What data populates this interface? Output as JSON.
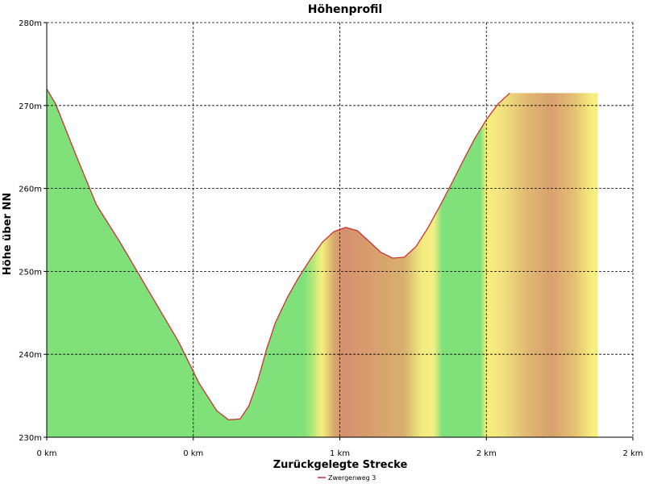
{
  "chart_data": {
    "type": "area",
    "title": "Höhenprofil",
    "xlabel": "Zurückgelegte Strecke",
    "ylabel": "Höhe über NN",
    "x_ticks": [
      "0 km",
      "0 km",
      "1 km",
      "2 km",
      "2 km"
    ],
    "x_tick_values": [
      0,
      0.5,
      1.0,
      1.5,
      2.0
    ],
    "y_ticks": [
      "230m",
      "240m",
      "250m",
      "260m",
      "270m",
      "280m"
    ],
    "y_tick_values": [
      230,
      240,
      250,
      260,
      270,
      280
    ],
    "xlim": [
      0,
      2.0
    ],
    "ylim": [
      230,
      280
    ],
    "grid": true,
    "legend_position": "bottom-center",
    "series": [
      {
        "name": "Zwergenweg 3",
        "color": "#cc3333",
        "x": [
          0,
          0.03,
          0.1,
          0.17,
          0.25,
          0.35,
          0.45,
          0.52,
          0.58,
          0.62,
          0.66,
          0.69,
          0.72,
          0.75,
          0.78,
          0.82,
          0.86,
          0.9,
          0.94,
          0.98,
          1.02,
          1.06,
          1.1,
          1.14,
          1.18,
          1.22,
          1.26,
          1.3,
          1.34,
          1.38,
          1.42,
          1.46,
          1.5,
          1.54,
          1.58,
          1.62,
          1.66,
          1.7,
          1.74,
          1.78,
          1.82,
          1.86,
          1.88
        ],
        "values": [
          272,
          270.2,
          264,
          258,
          253.5,
          247.5,
          241.5,
          236.5,
          233.2,
          232.1,
          232.2,
          233.8,
          236.8,
          240.6,
          243.8,
          246.8,
          249.3,
          251.5,
          253.5,
          254.8,
          255.3,
          254.9,
          253.6,
          252.3,
          251.6,
          251.7,
          253.0,
          255.2,
          257.8,
          260.5,
          263.3,
          266.0,
          268.3,
          270.2,
          271.5,
          271.5,
          271.5,
          271.5,
          271.5,
          271.5,
          271.5,
          271.5,
          271.5
        ]
      }
    ],
    "fill_bands": [
      {
        "from": 0.0,
        "color": "#80e07a"
      },
      {
        "from": 0.88,
        "color": "#80e07a"
      },
      {
        "from": 0.94,
        "color": "#f6f07c"
      },
      {
        "from": 0.98,
        "color": "#d8aa6e"
      },
      {
        "from": 1.01,
        "color": "#d59070"
      },
      {
        "from": 1.12,
        "color": "#d8a06e"
      },
      {
        "from": 1.22,
        "color": "#d8b070"
      },
      {
        "from": 1.28,
        "color": "#f2ec80"
      },
      {
        "from": 1.32,
        "color": "#f4ee84"
      },
      {
        "from": 1.35,
        "color": "#80e07a"
      },
      {
        "from": 1.48,
        "color": "#80e07a"
      },
      {
        "from": 1.5,
        "color": "#f8f07e"
      },
      {
        "from": 1.56,
        "color": "#f0e07e"
      },
      {
        "from": 1.64,
        "color": "#e0b872"
      },
      {
        "from": 1.72,
        "color": "#d8a06e"
      },
      {
        "from": 1.8,
        "color": "#e4c072"
      },
      {
        "from": 1.86,
        "color": "#f6ee7e"
      },
      {
        "from": 1.88,
        "color": "#f6ee7e"
      }
    ]
  }
}
